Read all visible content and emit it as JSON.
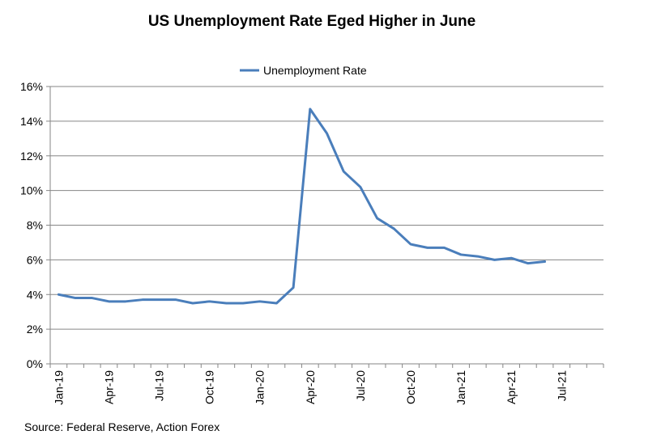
{
  "title": "US Unemployment Rate Eged Higher in June",
  "source": "Source: Federal Reserve, Action Forex",
  "colors": {
    "series": "#4A7EBB",
    "grid": "#868686",
    "axis": "#868686"
  },
  "chart_data": {
    "type": "line",
    "title": "US Unemployment Rate Eged Higher in June",
    "legend_position": "top-center",
    "grid": true,
    "ylim": [
      0,
      16
    ],
    "yticks": [
      0,
      2,
      4,
      6,
      8,
      10,
      12,
      14,
      16
    ],
    "ytick_labels": [
      "0%",
      "2%",
      "4%",
      "6%",
      "8%",
      "10%",
      "12%",
      "14%",
      "16%"
    ],
    "x_categories_count": 33,
    "xtick_labels": [
      "Jan-19",
      "Apr-19",
      "Jul-19",
      "Oct-19",
      "Jan-20",
      "Apr-20",
      "Jul-20",
      "Oct-20",
      "Jan-21",
      "Apr-21",
      "Jul-21"
    ],
    "series": [
      {
        "name": "Unemployment Rate",
        "x": [
          "Jan-19",
          "Feb-19",
          "Mar-19",
          "Apr-19",
          "May-19",
          "Jun-19",
          "Jul-19",
          "Aug-19",
          "Sep-19",
          "Oct-19",
          "Nov-19",
          "Dec-19",
          "Jan-20",
          "Feb-20",
          "Mar-20",
          "Apr-20",
          "May-20",
          "Jun-20",
          "Jul-20",
          "Aug-20",
          "Sep-20",
          "Oct-20",
          "Nov-20",
          "Dec-20",
          "Jan-21",
          "Feb-21",
          "Mar-21",
          "Apr-21",
          "May-21",
          "Jun-21"
        ],
        "values": [
          4.0,
          3.8,
          3.8,
          3.6,
          3.6,
          3.7,
          3.7,
          3.7,
          3.5,
          3.6,
          3.5,
          3.5,
          3.6,
          3.5,
          4.4,
          14.7,
          13.3,
          11.1,
          10.2,
          8.4,
          7.8,
          6.9,
          6.7,
          6.7,
          6.3,
          6.2,
          6.0,
          6.1,
          5.8,
          5.9
        ]
      }
    ]
  }
}
